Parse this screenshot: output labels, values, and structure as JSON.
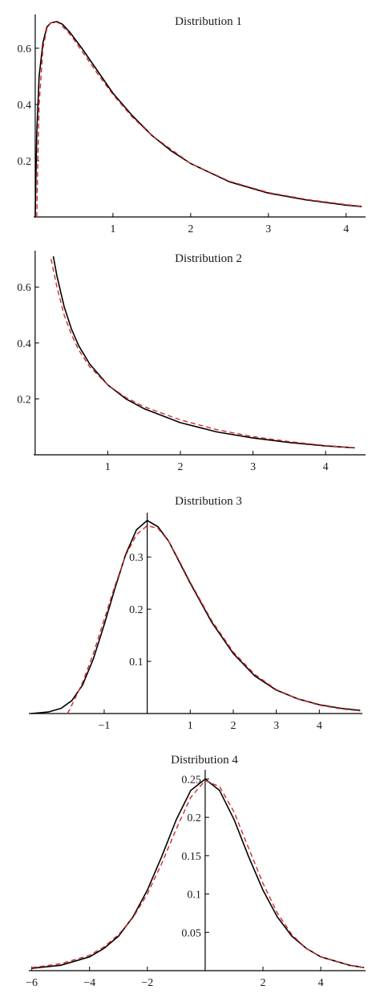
{
  "colors": {
    "solid_series": "#000000",
    "dashed_series": "#d62728"
  },
  "chart_data": [
    {
      "type": "line",
      "title": "Distribution 1",
      "xlim": [
        -0.02,
        4.25
      ],
      "ylim": [
        0,
        0.72
      ],
      "xticks": [
        1,
        2,
        3,
        4
      ],
      "yticks": [
        0.2,
        0.4,
        0.6
      ],
      "ytick_labels": [
        "0.2",
        "0.4",
        "0.6"
      ],
      "grid": false,
      "series": [
        {
          "style": "solid",
          "color": "#000000",
          "x": [
            0.0,
            0.02,
            0.05,
            0.1,
            0.15,
            0.2,
            0.28,
            0.35,
            0.45,
            0.6,
            0.8,
            1.0,
            1.25,
            1.5,
            1.75,
            2.0,
            2.5,
            3.0,
            3.5,
            4.0,
            4.2
          ],
          "y": [
            0.0,
            0.3,
            0.5,
            0.62,
            0.675,
            0.69,
            0.695,
            0.685,
            0.655,
            0.6,
            0.52,
            0.44,
            0.36,
            0.29,
            0.235,
            0.19,
            0.125,
            0.085,
            0.06,
            0.042,
            0.037
          ]
        },
        {
          "style": "dashed",
          "color": "#d62728",
          "x": [
            0.02,
            0.03,
            0.05,
            0.1,
            0.15,
            0.2,
            0.25,
            0.3,
            0.4,
            0.5,
            0.6,
            0.8,
            1.0,
            1.25,
            1.5,
            2.0,
            2.5,
            3.0,
            3.5,
            4.0,
            4.2
          ],
          "y": [
            0.0,
            0.15,
            0.4,
            0.6,
            0.67,
            0.69,
            0.695,
            0.69,
            0.665,
            0.63,
            0.59,
            0.51,
            0.435,
            0.355,
            0.29,
            0.19,
            0.127,
            0.087,
            0.062,
            0.044,
            0.038
          ]
        }
      ]
    },
    {
      "type": "line",
      "title": "Distribution 2",
      "xlim": [
        -0.02,
        4.55
      ],
      "ylim": [
        0,
        0.73
      ],
      "xticks": [
        1,
        2,
        3,
        4
      ],
      "yticks": [
        0.2,
        0.4,
        0.6
      ],
      "ytick_labels": [
        "0.2",
        "0.4",
        "0.6"
      ],
      "grid": false,
      "series": [
        {
          "style": "solid",
          "color": "#000000",
          "x": [
            0.25,
            0.3,
            0.4,
            0.5,
            0.6,
            0.75,
            1.0,
            1.25,
            1.5,
            2.0,
            2.5,
            3.0,
            3.5,
            4.0,
            4.4
          ],
          "y": [
            0.71,
            0.64,
            0.53,
            0.45,
            0.39,
            0.325,
            0.25,
            0.2,
            0.165,
            0.115,
            0.082,
            0.06,
            0.044,
            0.032,
            0.025
          ]
        },
        {
          "style": "dashed",
          "color": "#d62728",
          "x": [
            0.22,
            0.3,
            0.4,
            0.5,
            0.6,
            0.75,
            1.0,
            1.25,
            1.5,
            2.0,
            2.5,
            3.0,
            3.5,
            4.0,
            4.4
          ],
          "y": [
            0.7,
            0.6,
            0.5,
            0.43,
            0.375,
            0.315,
            0.25,
            0.205,
            0.172,
            0.125,
            0.09,
            0.065,
            0.047,
            0.033,
            0.025
          ]
        }
      ]
    },
    {
      "type": "line",
      "title": "Distribution 3",
      "xlim": [
        -2.75,
        5.0
      ],
      "ylim": [
        0,
        0.385
      ],
      "xticks": [
        -1,
        1,
        2,
        3,
        4
      ],
      "yticks": [
        0.1,
        0.2,
        0.3
      ],
      "ytick_labels": [
        "0.1",
        "0.2",
        "0.3"
      ],
      "grid": false,
      "series": [
        {
          "style": "solid",
          "color": "#000000",
          "x": [
            -2.7,
            -2.3,
            -2.0,
            -1.75,
            -1.5,
            -1.25,
            -1.0,
            -0.75,
            -0.5,
            -0.25,
            0.0,
            0.25,
            0.5,
            0.75,
            1.0,
            1.5,
            2.0,
            2.5,
            3.0,
            3.5,
            4.0,
            4.5,
            4.95
          ],
          "y": [
            0.0,
            0.003,
            0.01,
            0.025,
            0.055,
            0.105,
            0.17,
            0.24,
            0.305,
            0.352,
            0.37,
            0.358,
            0.33,
            0.29,
            0.25,
            0.175,
            0.115,
            0.072,
            0.045,
            0.028,
            0.017,
            0.01,
            0.006
          ]
        },
        {
          "style": "dashed",
          "color": "#d62728",
          "x": [
            -1.85,
            -1.7,
            -1.5,
            -1.25,
            -1.0,
            -0.75,
            -0.5,
            -0.25,
            0.0,
            0.25,
            0.5,
            0.75,
            1.0,
            1.5,
            2.0,
            2.5,
            3.0,
            3.5,
            4.0,
            4.5,
            4.95
          ],
          "y": [
            0.0,
            0.025,
            0.06,
            0.115,
            0.18,
            0.245,
            0.303,
            0.343,
            0.36,
            0.355,
            0.33,
            0.292,
            0.252,
            0.178,
            0.118,
            0.075,
            0.046,
            0.028,
            0.016,
            0.009,
            0.005
          ]
        }
      ]
    },
    {
      "type": "line",
      "title": "Distribution 4",
      "xlim": [
        -6.1,
        5.55
      ],
      "ylim": [
        0,
        0.262
      ],
      "xticks": [
        -6,
        -4,
        -2,
        2,
        4
      ],
      "yticks": [
        0.05,
        0.1,
        0.15,
        0.2,
        0.25
      ],
      "ytick_labels": [
        "0.05",
        "0.1",
        "0.15",
        "0.2",
        "0.25"
      ],
      "grid": false,
      "series": [
        {
          "style": "solid",
          "color": "#000000",
          "x": [
            -6.0,
            -5.0,
            -4.0,
            -3.5,
            -3.0,
            -2.5,
            -2.0,
            -1.5,
            -1.0,
            -0.5,
            0.0,
            0.5,
            1.0,
            1.5,
            2.0,
            2.5,
            3.0,
            3.5,
            4.0,
            5.0,
            5.5
          ],
          "y": [
            0.003,
            0.007,
            0.018,
            0.029,
            0.045,
            0.07,
            0.105,
            0.149,
            0.197,
            0.235,
            0.25,
            0.235,
            0.197,
            0.149,
            0.105,
            0.07,
            0.045,
            0.029,
            0.018,
            0.007,
            0.004
          ]
        },
        {
          "style": "dashed",
          "color": "#d62728",
          "x": [
            -6.0,
            -5.0,
            -4.0,
            -3.5,
            -3.0,
            -2.5,
            -2.0,
            -1.5,
            -1.0,
            -0.5,
            0.0,
            0.5,
            1.0,
            1.5,
            2.0,
            2.5,
            3.0,
            3.5,
            4.0,
            5.0,
            5.5
          ],
          "y": [
            0.004,
            0.009,
            0.02,
            0.031,
            0.047,
            0.069,
            0.1,
            0.14,
            0.185,
            0.226,
            0.248,
            0.24,
            0.207,
            0.16,
            0.114,
            0.075,
            0.047,
            0.029,
            0.018,
            0.007,
            0.004
          ]
        }
      ]
    }
  ]
}
